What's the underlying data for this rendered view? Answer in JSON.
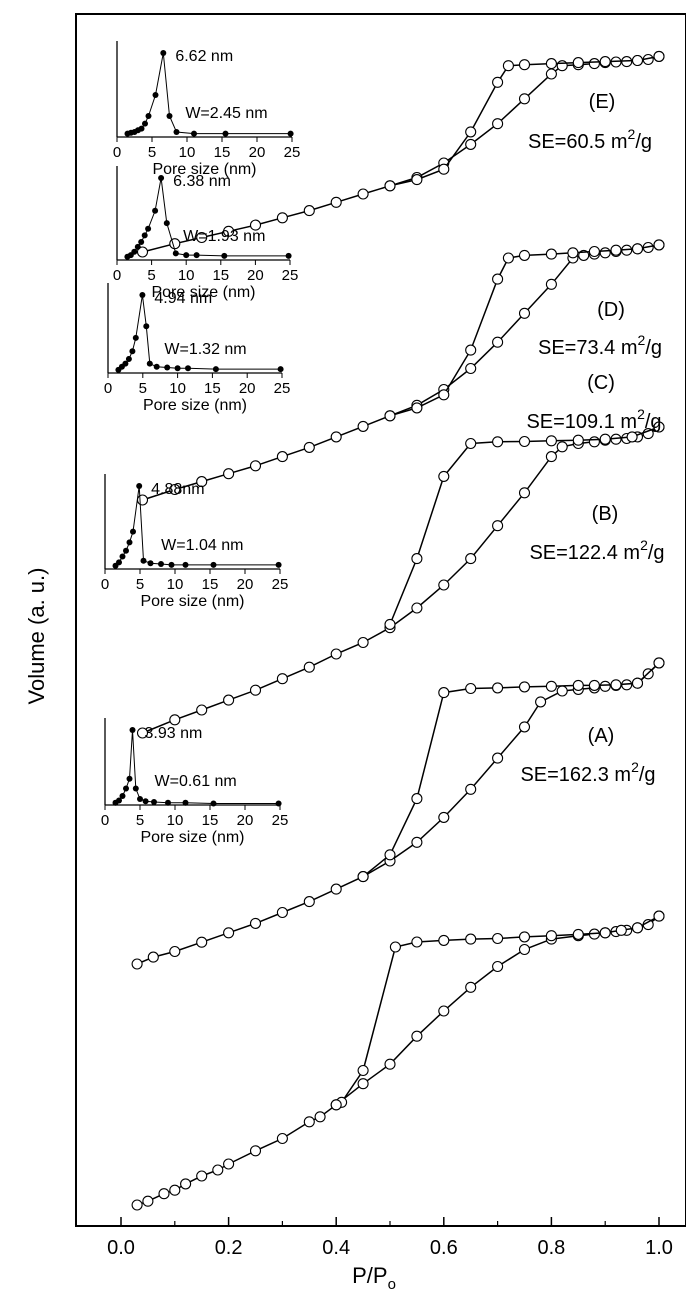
{
  "chart_data": {
    "type": "scatter",
    "xlabel_base": "P/P",
    "xlabel_sub": "o",
    "ylabel": "Volume (a. u.)",
    "xlim": [
      0.0,
      1.0
    ],
    "x_tick_labels": [
      "0.0",
      "0.2",
      "0.4",
      "0.6",
      "0.8",
      "1.0"
    ],
    "grid": false,
    "series": [
      {
        "tag": "(A)",
        "se_text": "SE=162.3 m",
        "se_sup": "2",
        "se_unit": "/g",
        "adsorption": [
          [
            0.03,
            0.0
          ],
          [
            0.05,
            0.012
          ],
          [
            0.08,
            0.036
          ],
          [
            0.1,
            0.047
          ],
          [
            0.12,
            0.067
          ],
          [
            0.15,
            0.092
          ],
          [
            0.18,
            0.111
          ],
          [
            0.2,
            0.13
          ],
          [
            0.25,
            0.172
          ],
          [
            0.3,
            0.211
          ],
          [
            0.35,
            0.264
          ],
          [
            0.37,
            0.28
          ],
          [
            0.4,
            0.318
          ],
          [
            0.45,
            0.385
          ],
          [
            0.5,
            0.447
          ],
          [
            0.55,
            0.536
          ],
          [
            0.6,
            0.616
          ],
          [
            0.65,
            0.691
          ],
          [
            0.7,
            0.757
          ],
          [
            0.75,
            0.811
          ],
          [
            0.8,
            0.844
          ],
          [
            0.85,
            0.855
          ],
          [
            0.88,
            0.86
          ],
          [
            0.9,
            0.864
          ],
          [
            0.92,
            0.868
          ],
          [
            0.94,
            0.872
          ],
          [
            0.96,
            0.88
          ],
          [
            0.98,
            0.89
          ],
          [
            1.0,
            0.917
          ]
        ],
        "desorption": [
          [
            1.0,
            0.917
          ],
          [
            0.96,
            0.88
          ],
          [
            0.93,
            0.872
          ],
          [
            0.9,
            0.864
          ],
          [
            0.85,
            0.859
          ],
          [
            0.8,
            0.855
          ],
          [
            0.75,
            0.851
          ],
          [
            0.7,
            0.846
          ],
          [
            0.65,
            0.844
          ],
          [
            0.6,
            0.84
          ],
          [
            0.55,
            0.835
          ],
          [
            0.51,
            0.819
          ],
          [
            0.45,
            0.427
          ],
          [
            0.41,
            0.326
          ],
          [
            0.4,
            0.318
          ]
        ],
        "inset": {
          "peak_label": "3.93 nm",
          "width_label": "W=0.61 nm",
          "xlabel": "Pore size (nm)",
          "xlim": [
            0,
            25
          ],
          "x_tick_labels": [
            "0",
            "5",
            "10",
            "15",
            "20",
            "25"
          ],
          "points": [
            [
              1.5,
              0.03
            ],
            [
              2.0,
              0.06
            ],
            [
              2.5,
              0.12
            ],
            [
              3.0,
              0.22
            ],
            [
              3.5,
              0.35
            ],
            [
              3.93,
              1.0
            ],
            [
              4.4,
              0.22
            ],
            [
              5.0,
              0.08
            ],
            [
              5.8,
              0.05
            ],
            [
              7.0,
              0.04
            ],
            [
              9.0,
              0.03
            ],
            [
              11.5,
              0.03
            ],
            [
              15.5,
              0.02
            ],
            [
              24.8,
              0.02
            ]
          ]
        }
      },
      {
        "tag": "(B)",
        "se_text": "SE=122.4 m",
        "se_sup": "2",
        "se_unit": "/g",
        "adsorption": [
          [
            0.03,
            0.0
          ],
          [
            0.06,
            0.022
          ],
          [
            0.1,
            0.04
          ],
          [
            0.15,
            0.07
          ],
          [
            0.2,
            0.1
          ],
          [
            0.25,
            0.13
          ],
          [
            0.3,
            0.165
          ],
          [
            0.35,
            0.2
          ],
          [
            0.4,
            0.24
          ],
          [
            0.45,
            0.28
          ],
          [
            0.5,
            0.33
          ],
          [
            0.55,
            0.39
          ],
          [
            0.6,
            0.47
          ],
          [
            0.65,
            0.56
          ],
          [
            0.7,
            0.66
          ],
          [
            0.75,
            0.76
          ],
          [
            0.78,
            0.84
          ],
          [
            0.82,
            0.875
          ],
          [
            0.85,
            0.88
          ],
          [
            0.88,
            0.885
          ],
          [
            0.9,
            0.89
          ],
          [
            0.92,
            0.893
          ],
          [
            0.94,
            0.895
          ],
          [
            0.96,
            0.9
          ],
          [
            0.98,
            0.93
          ],
          [
            1.0,
            0.965
          ]
        ],
        "desorption": [
          [
            1.0,
            0.965
          ],
          [
            0.96,
            0.9
          ],
          [
            0.92,
            0.895
          ],
          [
            0.88,
            0.893
          ],
          [
            0.85,
            0.893
          ],
          [
            0.8,
            0.89
          ],
          [
            0.75,
            0.888
          ],
          [
            0.7,
            0.885
          ],
          [
            0.65,
            0.883
          ],
          [
            0.6,
            0.87
          ],
          [
            0.55,
            0.53
          ],
          [
            0.5,
            0.35
          ],
          [
            0.45,
            0.28
          ]
        ],
        "inset": {
          "peak_label": "4.88nm",
          "width_label": "W=1.04 nm",
          "xlabel": "Pore size (nm)",
          "xlim": [
            0,
            25
          ],
          "x_tick_labels": [
            "0",
            "5",
            "10",
            "15",
            "20",
            "25"
          ],
          "points": [
            [
              1.5,
              0.04
            ],
            [
              2.0,
              0.08
            ],
            [
              2.5,
              0.15
            ],
            [
              3.0,
              0.22
            ],
            [
              3.5,
              0.32
            ],
            [
              4.0,
              0.45
            ],
            [
              4.88,
              1.0
            ],
            [
              5.5,
              0.1
            ],
            [
              6.5,
              0.07
            ],
            [
              8.0,
              0.06
            ],
            [
              9.5,
              0.05
            ],
            [
              11.5,
              0.05
            ],
            [
              15.5,
              0.05
            ],
            [
              24.8,
              0.05
            ]
          ]
        }
      },
      {
        "tag": "(C)",
        "se_text": "SE=109.1 m",
        "se_sup": "2",
        "se_unit": "/g",
        "adsorption": [
          [
            0.04,
            0.0
          ],
          [
            0.1,
            0.04
          ],
          [
            0.15,
            0.07
          ],
          [
            0.2,
            0.1
          ],
          [
            0.25,
            0.13
          ],
          [
            0.3,
            0.165
          ],
          [
            0.35,
            0.2
          ],
          [
            0.4,
            0.24
          ],
          [
            0.45,
            0.275
          ],
          [
            0.5,
            0.32
          ],
          [
            0.55,
            0.38
          ],
          [
            0.6,
            0.45
          ],
          [
            0.65,
            0.53
          ],
          [
            0.7,
            0.63
          ],
          [
            0.75,
            0.73
          ],
          [
            0.8,
            0.84
          ],
          [
            0.82,
            0.87
          ],
          [
            0.85,
            0.88
          ],
          [
            0.88,
            0.885
          ],
          [
            0.9,
            0.89
          ],
          [
            0.92,
            0.893
          ],
          [
            0.94,
            0.895
          ],
          [
            0.96,
            0.9
          ],
          [
            0.98,
            0.91
          ],
          [
            1.0,
            0.93
          ]
        ],
        "desorption": [
          [
            1.0,
            0.93
          ],
          [
            0.95,
            0.9
          ],
          [
            0.9,
            0.893
          ],
          [
            0.85,
            0.89
          ],
          [
            0.8,
            0.888
          ],
          [
            0.75,
            0.886
          ],
          [
            0.7,
            0.885
          ],
          [
            0.65,
            0.88
          ],
          [
            0.6,
            0.78
          ],
          [
            0.55,
            0.53
          ],
          [
            0.5,
            0.33
          ]
        ],
        "inset": {
          "peak_label": "4.94 nm",
          "width_label": "W=1.32 nm",
          "xlabel": "Pore size (nm)",
          "xlim": [
            0,
            25
          ],
          "x_tick_labels": [
            "0",
            "5",
            "10",
            "15",
            "20",
            "25"
          ],
          "points": [
            [
              1.5,
              0.04
            ],
            [
              2.0,
              0.08
            ],
            [
              2.5,
              0.12
            ],
            [
              3.0,
              0.18
            ],
            [
              3.5,
              0.28
            ],
            [
              4.0,
              0.45
            ],
            [
              4.94,
              1.0
            ],
            [
              5.5,
              0.6
            ],
            [
              6.0,
              0.12
            ],
            [
              7.0,
              0.08
            ],
            [
              8.5,
              0.07
            ],
            [
              10.0,
              0.06
            ],
            [
              11.5,
              0.06
            ],
            [
              15.5,
              0.05
            ],
            [
              24.8,
              0.05
            ]
          ]
        }
      },
      {
        "tag": "(D)",
        "se_text": "SE=73.4 m",
        "se_sup": "2",
        "se_unit": "/g",
        "adsorption": [
          [
            0.04,
            0.0
          ],
          [
            0.1,
            0.04
          ],
          [
            0.15,
            0.07
          ],
          [
            0.2,
            0.1
          ],
          [
            0.25,
            0.13
          ],
          [
            0.3,
            0.165
          ],
          [
            0.35,
            0.2
          ],
          [
            0.4,
            0.24
          ],
          [
            0.45,
            0.28
          ],
          [
            0.5,
            0.32
          ],
          [
            0.55,
            0.36
          ],
          [
            0.6,
            0.42
          ],
          [
            0.65,
            0.5
          ],
          [
            0.7,
            0.6
          ],
          [
            0.75,
            0.71
          ],
          [
            0.8,
            0.82
          ],
          [
            0.84,
            0.92
          ],
          [
            0.86,
            0.93
          ],
          [
            0.88,
            0.935
          ],
          [
            0.9,
            0.94
          ],
          [
            0.92,
            0.945
          ],
          [
            0.94,
            0.95
          ],
          [
            0.96,
            0.955
          ],
          [
            0.98,
            0.96
          ],
          [
            1.0,
            0.97
          ]
        ],
        "desorption": [
          [
            1.0,
            0.97
          ],
          [
            0.96,
            0.955
          ],
          [
            0.92,
            0.95
          ],
          [
            0.88,
            0.945
          ],
          [
            0.84,
            0.94
          ],
          [
            0.8,
            0.935
          ],
          [
            0.75,
            0.93
          ],
          [
            0.72,
            0.92
          ],
          [
            0.7,
            0.84
          ],
          [
            0.65,
            0.57
          ],
          [
            0.6,
            0.4
          ],
          [
            0.55,
            0.35
          ],
          [
            0.5,
            0.32
          ]
        ],
        "inset": {
          "peak_label": "6.38 nm",
          "width_label": "W=1.93 nm",
          "xlabel": "Pore size (nm)",
          "xlim": [
            0,
            25
          ],
          "x_tick_labels": [
            "0",
            "5",
            "10",
            "15",
            "20",
            "25"
          ],
          "points": [
            [
              1.5,
              0.04
            ],
            [
              2.0,
              0.06
            ],
            [
              2.5,
              0.1
            ],
            [
              3.0,
              0.16
            ],
            [
              3.5,
              0.22
            ],
            [
              4.0,
              0.3
            ],
            [
              4.5,
              0.38
            ],
            [
              5.5,
              0.6
            ],
            [
              6.38,
              1.0
            ],
            [
              7.2,
              0.45
            ],
            [
              8.5,
              0.08
            ],
            [
              10.0,
              0.06
            ],
            [
              11.5,
              0.06
            ],
            [
              15.5,
              0.05
            ],
            [
              24.8,
              0.05
            ]
          ]
        }
      },
      {
        "tag": "(E)",
        "se_text": "SE=60.5 m",
        "se_sup": "2",
        "se_unit": "/g",
        "adsorption": [
          [
            0.04,
            0.0
          ],
          [
            0.1,
            0.04
          ],
          [
            0.15,
            0.07
          ],
          [
            0.2,
            0.1
          ],
          [
            0.25,
            0.13
          ],
          [
            0.3,
            0.165
          ],
          [
            0.35,
            0.2
          ],
          [
            0.4,
            0.24
          ],
          [
            0.45,
            0.28
          ],
          [
            0.5,
            0.32
          ],
          [
            0.55,
            0.36
          ],
          [
            0.6,
            0.43
          ],
          [
            0.65,
            0.52
          ],
          [
            0.7,
            0.62
          ],
          [
            0.75,
            0.74
          ],
          [
            0.8,
            0.86
          ],
          [
            0.82,
            0.9
          ],
          [
            0.85,
            0.905
          ],
          [
            0.88,
            0.91
          ],
          [
            0.9,
            0.915
          ],
          [
            0.92,
            0.918
          ],
          [
            0.94,
            0.92
          ],
          [
            0.96,
            0.925
          ],
          [
            0.98,
            0.93
          ],
          [
            1.0,
            0.945
          ]
        ],
        "desorption": [
          [
            1.0,
            0.945
          ],
          [
            0.96,
            0.925
          ],
          [
            0.9,
            0.92
          ],
          [
            0.85,
            0.915
          ],
          [
            0.8,
            0.91
          ],
          [
            0.75,
            0.905
          ],
          [
            0.72,
            0.9
          ],
          [
            0.7,
            0.82
          ],
          [
            0.65,
            0.58
          ],
          [
            0.6,
            0.4
          ],
          [
            0.55,
            0.35
          ],
          [
            0.5,
            0.32
          ]
        ],
        "inset": {
          "peak_label": "6.62 nm",
          "width_label": "W=2.45 nm",
          "xlabel": "Pore size (nm)",
          "xlim": [
            0,
            25
          ],
          "x_tick_labels": [
            "0",
            "5",
            "10",
            "15",
            "20",
            "25"
          ],
          "points": [
            [
              1.5,
              0.04
            ],
            [
              2.0,
              0.05
            ],
            [
              2.5,
              0.06
            ],
            [
              3.0,
              0.08
            ],
            [
              3.5,
              0.1
            ],
            [
              4.0,
              0.16
            ],
            [
              4.5,
              0.25
            ],
            [
              5.5,
              0.5
            ],
            [
              6.62,
              1.0
            ],
            [
              7.5,
              0.25
            ],
            [
              8.5,
              0.06
            ],
            [
              11.0,
              0.04
            ],
            [
              15.5,
              0.04
            ],
            [
              24.8,
              0.04
            ]
          ]
        }
      }
    ]
  }
}
